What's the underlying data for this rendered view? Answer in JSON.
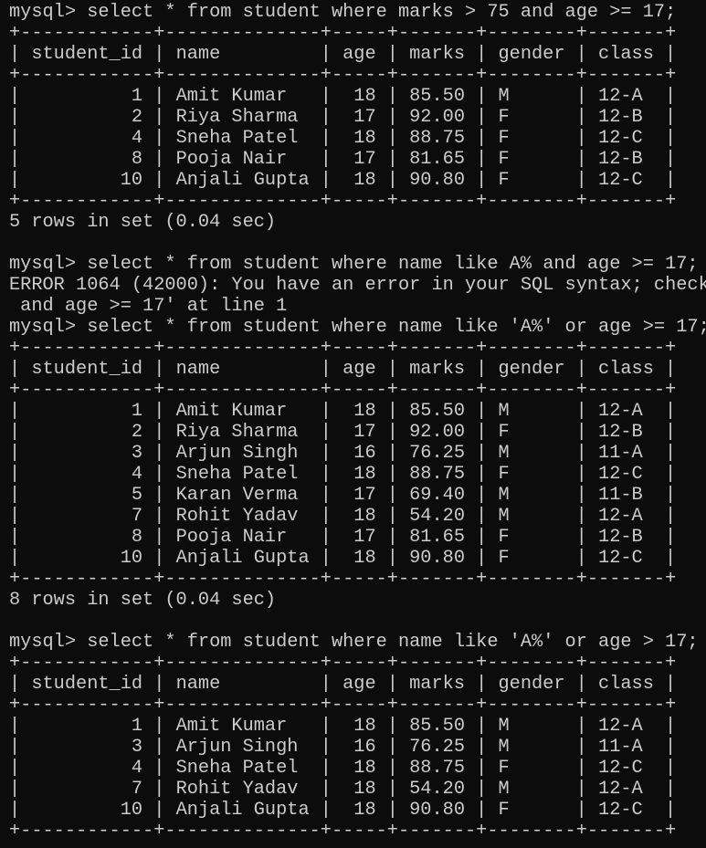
{
  "blocks": [
    {
      "prompt": "mysql> select * from student where marks > 75 and age >= 17;",
      "table": {
        "header": [
          "student_id",
          "name",
          "age",
          "marks",
          "gender",
          "class"
        ],
        "rows": [
          [
            "1",
            "Amit Kumar",
            "18",
            "85.50",
            "M",
            "12-A"
          ],
          [
            "2",
            "Riya Sharma",
            "17",
            "92.00",
            "F",
            "12-B"
          ],
          [
            "4",
            "Sneha Patel",
            "18",
            "88.75",
            "F",
            "12-C"
          ],
          [
            "8",
            "Pooja Nair",
            "17",
            "81.65",
            "F",
            "12-B"
          ],
          [
            "10",
            "Anjali Gupta",
            "18",
            "90.80",
            "F",
            "12-C"
          ]
        ]
      },
      "footer": "5 rows in set (0.04 sec)"
    },
    {
      "prompt": "mysql> select * from student where name like A% and age >= 17;",
      "error": [
        "ERROR 1064 (42000): You have an error in your SQL syntax; check",
        " and age >= 17' at line 1"
      ]
    },
    {
      "prompt": "mysql> select * from student where name like 'A%' or age >= 17;",
      "table": {
        "header": [
          "student_id",
          "name",
          "age",
          "marks",
          "gender",
          "class"
        ],
        "rows": [
          [
            "1",
            "Amit Kumar",
            "18",
            "85.50",
            "M",
            "12-A"
          ],
          [
            "2",
            "Riya Sharma",
            "17",
            "92.00",
            "F",
            "12-B"
          ],
          [
            "3",
            "Arjun Singh",
            "16",
            "76.25",
            "M",
            "11-A"
          ],
          [
            "4",
            "Sneha Patel",
            "18",
            "88.75",
            "F",
            "12-C"
          ],
          [
            "5",
            "Karan Verma",
            "17",
            "69.40",
            "M",
            "11-B"
          ],
          [
            "7",
            "Rohit Yadav",
            "18",
            "54.20",
            "M",
            "12-A"
          ],
          [
            "8",
            "Pooja Nair",
            "17",
            "81.65",
            "F",
            "12-B"
          ],
          [
            "10",
            "Anjali Gupta",
            "18",
            "90.80",
            "F",
            "12-C"
          ]
        ]
      },
      "footer": "8 rows in set (0.04 sec)"
    },
    {
      "prompt": "mysql> select * from student where name like 'A%' or age > 17;",
      "table": {
        "header": [
          "student_id",
          "name",
          "age",
          "marks",
          "gender",
          "class"
        ],
        "rows": [
          [
            "1",
            "Amit Kumar",
            "18",
            "85.50",
            "M",
            "12-A"
          ],
          [
            "3",
            "Arjun Singh",
            "16",
            "76.25",
            "M",
            "11-A"
          ],
          [
            "4",
            "Sneha Patel",
            "18",
            "88.75",
            "F",
            "12-C"
          ],
          [
            "7",
            "Rohit Yadav",
            "18",
            "54.20",
            "M",
            "12-A"
          ],
          [
            "10",
            "Anjali Gupta",
            "18",
            "90.80",
            "F",
            "12-C"
          ]
        ]
      }
    }
  ]
}
